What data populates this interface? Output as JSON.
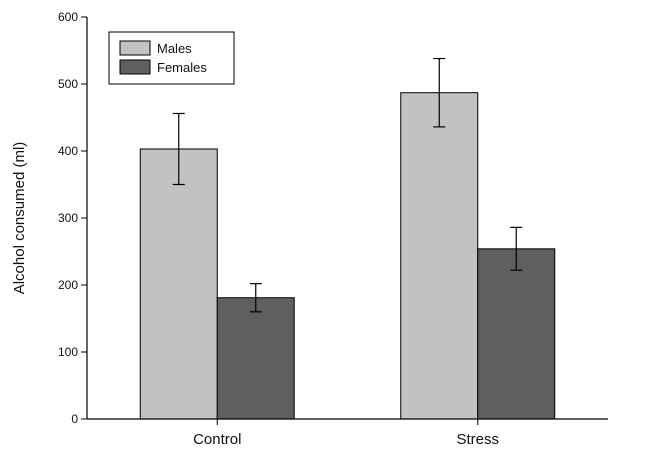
{
  "chart_data": {
    "type": "bar",
    "title": "",
    "xlabel": "",
    "ylabel": "Alcohol consumed (ml)",
    "ylim": [
      0,
      600
    ],
    "yticks": [
      0,
      100,
      200,
      300,
      400,
      500,
      600
    ],
    "categories": [
      "Control",
      "Stress"
    ],
    "series": [
      {
        "name": "Males",
        "values": [
          403,
          487
        ],
        "errors": [
          53,
          51
        ],
        "color": "#c2c2c2"
      },
      {
        "name": "Females",
        "values": [
          181,
          254
        ],
        "errors": [
          21,
          32
        ],
        "color": "#5f5f5f"
      }
    ],
    "grid": false,
    "legend_position": "top-left",
    "error_bars": true
  }
}
